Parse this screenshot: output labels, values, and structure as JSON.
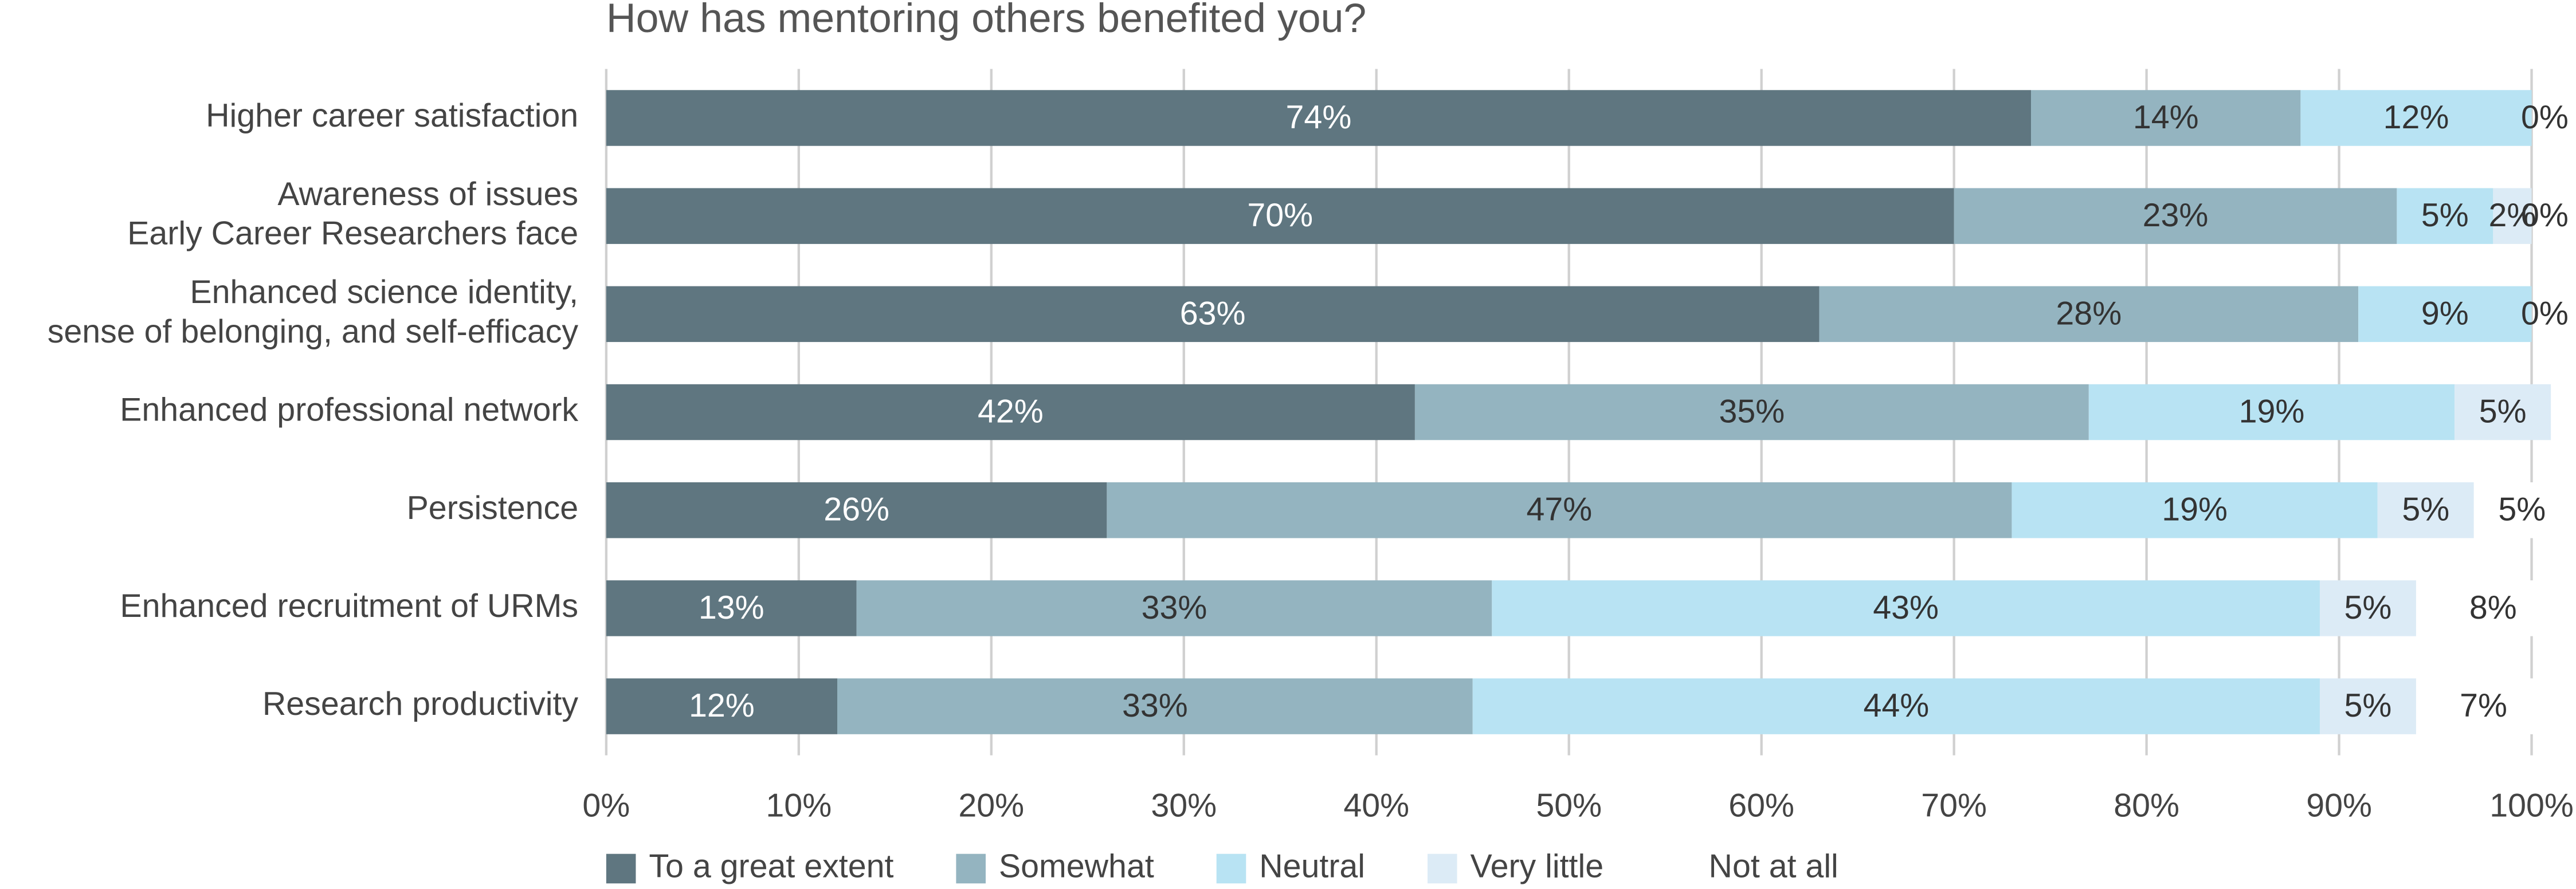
{
  "chart_data": {
    "type": "stacked_bar_horizontal",
    "title": "How has mentoring others benefited you?",
    "categories": [
      [
        "Higher career satisfaction"
      ],
      [
        "Awareness of issues",
        "Early Career Researchers face"
      ],
      [
        "Enhanced science identity,",
        "sense of belonging, and self-efficacy"
      ],
      [
        "Enhanced professional network"
      ],
      [
        "Persistence"
      ],
      [
        "Enhanced recruitment of URMs"
      ],
      [
        "Research productivity"
      ]
    ],
    "series": [
      {
        "name": "To a great extent",
        "color": "#5f7680",
        "label_color": "#ffffff",
        "values": [
          74,
          70,
          63,
          42,
          26,
          13,
          12
        ],
        "value_labels": [
          "74%",
          "70%",
          "63%",
          "42%",
          "26%",
          "13%",
          "12%"
        ]
      },
      {
        "name": "Somewhat",
        "color": "#94b4c0",
        "label_color": "#333333",
        "values": [
          14,
          23,
          28,
          35,
          47,
          33,
          33
        ],
        "value_labels": [
          "14%",
          "23%",
          "28%",
          "35%",
          "47%",
          "33%",
          "33%"
        ]
      },
      {
        "name": "Neutral",
        "color": "#b8e3f3",
        "label_color": "#333333",
        "values": [
          12,
          5,
          9,
          19,
          19,
          43,
          44
        ],
        "value_labels": [
          "12%",
          "5%",
          "9%",
          "19%",
          "19%",
          "43%",
          "44%"
        ]
      },
      {
        "name": "Very little",
        "color": "#dcebf6",
        "label_color": "#333333",
        "values": [
          null,
          2,
          null,
          5,
          5,
          5,
          5
        ],
        "value_labels": [
          null,
          "2%",
          null,
          "5%",
          "5%",
          "5%",
          "5%"
        ]
      },
      {
        "name": "Not at all",
        "color": "#ffffff",
        "label_color": "#333333",
        "values": [
          0,
          0,
          0,
          null,
          5,
          8,
          7
        ],
        "value_labels": [
          "0%",
          "0%",
          "0%",
          null,
          "5%",
          "8%",
          "7%"
        ]
      }
    ],
    "xlim": [
      0,
      100
    ],
    "xticks": [
      {
        "value": 0,
        "label": "0%"
      },
      {
        "value": 10,
        "label": "10%"
      },
      {
        "value": 20,
        "label": "20%"
      },
      {
        "value": 30,
        "label": "30%"
      },
      {
        "value": 40,
        "label": "40%"
      },
      {
        "value": 50,
        "label": "50%"
      },
      {
        "value": 60,
        "label": "60%"
      },
      {
        "value": 70,
        "label": "70%"
      },
      {
        "value": 80,
        "label": "80%"
      },
      {
        "value": 90,
        "label": "90%"
      },
      {
        "value": 100,
        "label": "100%"
      }
    ],
    "grid": true,
    "legend": "bottom"
  }
}
